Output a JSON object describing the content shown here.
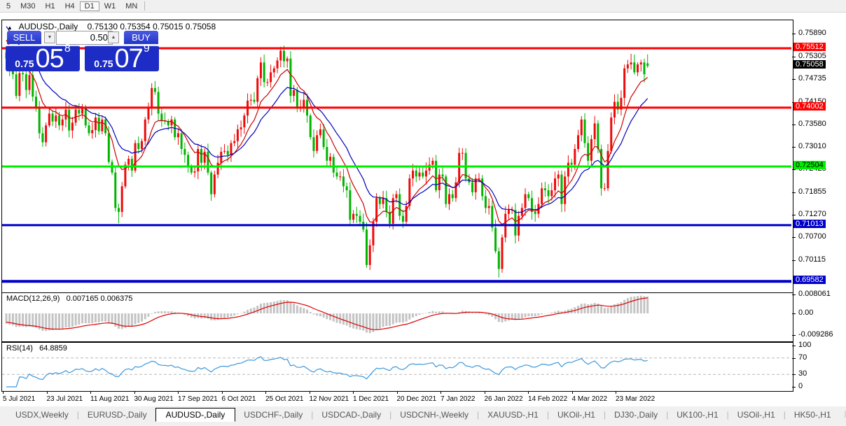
{
  "toolbar": {
    "items": [
      {
        "label": "5",
        "active": false
      },
      {
        "label": "M30",
        "active": false
      },
      {
        "label": "H1",
        "active": false
      },
      {
        "label": "H4",
        "active": false
      },
      {
        "label": "D1",
        "active": true
      },
      {
        "label": "W1",
        "active": false
      },
      {
        "label": "MN",
        "active": false
      }
    ]
  },
  "header": {
    "symbol": "AUDUSD-,Daily",
    "ohlc": "0.75130 0.75354 0.75015 0.75058"
  },
  "trade": {
    "sell_label": "SELL",
    "buy_label": "BUY",
    "volume": "0.50",
    "sell_price": {
      "prefix": "0.75",
      "main": "05",
      "sup": "8"
    },
    "buy_price": {
      "prefix": "0.75",
      "main": "07",
      "sup": "9"
    }
  },
  "icons": {
    "chart_collapse": "▲",
    "spinner_down": "▼",
    "spinner_up": "▲",
    "tab_nav_left": "◄",
    "tab_nav_right": "►"
  },
  "axis": {
    "price_ticks": [
      "0.75890",
      "0.75305",
      "0.74735",
      "0.74150",
      "0.73580",
      "0.73010",
      "0.72425",
      "0.71855",
      "0.71270",
      "0.70700",
      "0.70115"
    ],
    "badges": [
      {
        "text": "0.75512",
        "bg": "#ff0000",
        "fg": "#ffffff",
        "price": 0.75512
      },
      {
        "text": "0.75058",
        "bg": "#000000",
        "fg": "#ffffff",
        "price": 0.75058
      },
      {
        "text": "0.74002",
        "bg": "#ff0000",
        "fg": "#ffffff",
        "price": 0.74002
      },
      {
        "text": "0.72504",
        "bg": "#00ee00",
        "fg": "#000000",
        "price": 0.72504
      },
      {
        "text": "0.71013",
        "bg": "#0000c8",
        "fg": "#ffffff",
        "price": 0.71013
      },
      {
        "text": "0.69582",
        "bg": "#0000c8",
        "fg": "#ffffff",
        "price": 0.69582
      }
    ],
    "macd_ticks": [
      "0.008061",
      "0.00",
      "-0.009286"
    ],
    "rsi_ticks": [
      "100",
      "70",
      "30",
      "0"
    ]
  },
  "indicators": {
    "macd": {
      "label": "MACD(12,26,9)",
      "values": "0.007165 0.006375"
    },
    "rsi": {
      "label": "RSI(14)",
      "value": "64.8859",
      "levels": [
        70,
        30
      ]
    }
  },
  "dates": {
    "labels": [
      "5 Jul 2021",
      "23 Jul 2021",
      "11 Aug 2021",
      "30 Aug 2021",
      "17 Sep 2021",
      "6 Oct 2021",
      "25 Oct 2021",
      "12 Nov 2021",
      "1 Dec 2021",
      "20 Dec 2021",
      "7 Jan 2022",
      "26 Jan 2022",
      "14 Feb 2022",
      "4 Mar 2022",
      "23 Mar 2022"
    ]
  },
  "tabs": {
    "items": [
      "USDX,Weekly",
      "EURUSD-,Daily",
      "AUDUSD-,Daily",
      "USDCHF-,Daily",
      "USDCAD-,Daily",
      "USDCNH-,Weekly",
      "XAUUSD-,H1",
      "UKOil-,H1",
      "DJ30-,Daily",
      "UK100-,H1",
      "USOil-,H1",
      "HK50-,H1"
    ],
    "active_index": 2
  },
  "chart_data": {
    "type": "candlestick",
    "title": "AUDUSD-,Daily",
    "ylim": [
      0.69356,
      0.76223
    ],
    "colors": {
      "bull": "#ee0a0a",
      "bear": "#00b400",
      "ma_fast": "#cc0000",
      "ma_slow": "#0000bb",
      "macd_hist": "#c4c4c4",
      "macd_signal": "#dd0000",
      "rsi_line": "#3b98dd"
    },
    "open_first": 0.754,
    "closes": [
      0.7525,
      0.7494,
      0.7485,
      0.743,
      0.7488,
      0.7485,
      0.7445,
      0.7483,
      0.7428,
      0.74,
      0.7335,
      0.7312,
      0.7355,
      0.7385,
      0.7365,
      0.738,
      0.7355,
      0.737,
      0.7395,
      0.7342,
      0.7362,
      0.7395,
      0.7385,
      0.74,
      0.7355,
      0.7335,
      0.7343,
      0.7375,
      0.734,
      0.737,
      0.7335,
      0.7262,
      0.7235,
      0.7145,
      0.7135,
      0.72,
      0.7255,
      0.727,
      0.724,
      0.731,
      0.7295,
      0.7315,
      0.737,
      0.74,
      0.745,
      0.744,
      0.7385,
      0.7368,
      0.7365,
      0.7355,
      0.737,
      0.7325,
      0.7335,
      0.7295,
      0.728,
      0.725,
      0.7235,
      0.7238,
      0.7295,
      0.726,
      0.7288,
      0.7235,
      0.718,
      0.723,
      0.726,
      0.7288,
      0.729,
      0.728,
      0.731,
      0.7315,
      0.7345,
      0.735,
      0.738,
      0.7418,
      0.742,
      0.7415,
      0.7475,
      0.7515,
      0.7465,
      0.7465,
      0.749,
      0.75,
      0.752,
      0.7545,
      0.7518,
      0.7525,
      0.743,
      0.7445,
      0.74,
      0.74,
      0.742,
      0.738,
      0.7325,
      0.729,
      0.733,
      0.7345,
      0.73,
      0.7265,
      0.7275,
      0.7235,
      0.7225,
      0.7225,
      0.72,
      0.719,
      0.7115,
      0.713,
      0.7125,
      0.711,
      0.709,
      0.7,
      0.705,
      0.711,
      0.717,
      0.7155,
      0.717,
      0.7135,
      0.7105,
      0.717,
      0.718,
      0.7125,
      0.711,
      0.715,
      0.722,
      0.724,
      0.7225,
      0.7235,
      0.7225,
      0.724,
      0.7255,
      0.7265,
      0.719,
      0.723,
      0.7225,
      0.7155,
      0.718,
      0.717,
      0.721,
      0.7285,
      0.7285,
      0.722,
      0.721,
      0.7185,
      0.722,
      0.722,
      0.7175,
      0.7145,
      0.715,
      0.7095,
      0.7035,
      0.699,
      0.707,
      0.713,
      0.714,
      0.714,
      0.7075,
      0.7125,
      0.7145,
      0.718,
      0.717,
      0.7135,
      0.713,
      0.7155,
      0.7195,
      0.719,
      0.7175,
      0.719,
      0.722,
      0.723,
      0.7155,
      0.7225,
      0.726,
      0.7255,
      0.7295,
      0.733,
      0.737,
      0.731,
      0.7265,
      0.732,
      0.736,
      0.7295,
      0.7195,
      0.7195,
      0.729,
      0.7375,
      0.7415,
      0.7395,
      0.7425,
      0.75,
      0.751,
      0.7515,
      0.749,
      0.751,
      0.7515,
      0.7485,
      0.75058
    ],
    "last_candle": {
      "open": 0.7513,
      "high": 0.75354,
      "low": 0.75015,
      "close": 0.75058
    },
    "extremes": [
      {
        "i": 34,
        "low": 0.7106
      },
      {
        "i": 83,
        "high": 0.7555
      },
      {
        "i": 109,
        "low": 0.6993
      },
      {
        "i": 149,
        "low": 0.6968
      },
      {
        "i": 189,
        "high": 0.7537
      }
    ],
    "hlines": [
      {
        "price": 0.75512,
        "color": "#ff0000",
        "width": 3
      },
      {
        "price": 0.74002,
        "color": "#ff0000",
        "width": 3
      },
      {
        "price": 0.72504,
        "color": "#00ee00",
        "width": 3
      },
      {
        "price": 0.71013,
        "color": "#0000c8",
        "width": 3
      },
      {
        "price": 0.69582,
        "color": "#0000c8",
        "width": 4
      }
    ],
    "current_price": 0.75058
  }
}
